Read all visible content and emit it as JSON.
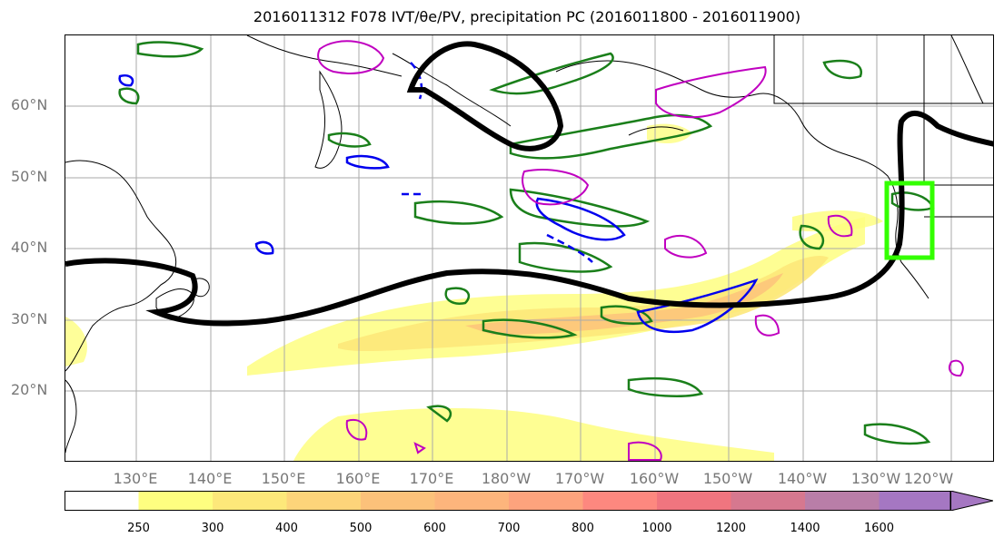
{
  "title": "2016011312 F078 IVT/θe/PV, precipitation PC (2016011800 - 2016011900)",
  "lat_labels": [
    "60°N",
    "50°N",
    "40°N",
    "30°N",
    "20°N"
  ],
  "lon_labels": [
    "130°E",
    "140°E",
    "150°E",
    "160°E",
    "170°E",
    "180°W",
    "170°W",
    "160°W",
    "150°W",
    "140°W",
    "130°W",
    "120°W"
  ],
  "colorbar": {
    "ticks": [
      "250",
      "300",
      "400",
      "500",
      "600",
      "700",
      "800",
      "1000",
      "1200",
      "1400",
      "1600"
    ],
    "colors": [
      "#ffffff",
      "#fefe80",
      "#fde87a",
      "#fdd47a",
      "#fcc17a",
      "#fdb57c",
      "#fda37d",
      "#fd887f",
      "#f0757f",
      "#d6788f",
      "#b97ea8",
      "#a577c2"
    ]
  },
  "colors": {
    "theta_e_contour": "#000000",
    "pv_positive": "#1a7f1a",
    "pv_negative": "#0000ee",
    "precip": "#c000c0",
    "box": "#33ff00"
  }
}
